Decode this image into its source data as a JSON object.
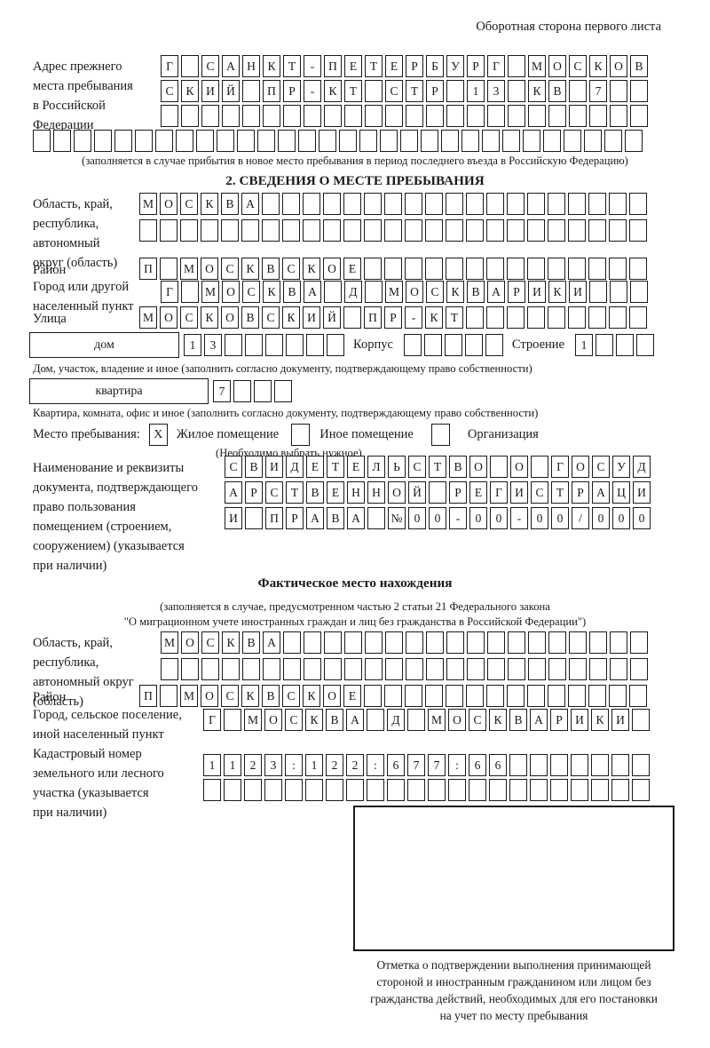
{
  "page_note": "Оборотная сторона первого листа",
  "prev_address": {
    "label_lines": [
      "Адрес прежнего",
      "места пребывания",
      "в Российской",
      "Федерации"
    ],
    "row1": "Г САНКТ-ПЕТЕРБУРГ МОСКОВ",
    "row2": "СКИЙ ПР-КТ СТР 13 КВ 7  ",
    "row3": 24,
    "row4": 30,
    "note": "(заполняется в случае прибытия в новое место пребывания в период последнего въезда в Российскую Федерацию)"
  },
  "section2": {
    "title": "2. СВЕДЕНИЯ О МЕСТЕ ПРЕБЫВАНИЯ",
    "region": {
      "label_lines": [
        "Область, край,",
        "республика,",
        "автономный",
        "округ (область)"
      ],
      "row1": "МОСКВА                   ",
      "row2": 25
    },
    "district": {
      "label": "Район",
      "row": "П МОСКВСКОЕ              "
    },
    "city": {
      "label_lines": [
        "Город или другой",
        "населенный пункт"
      ],
      "row": "Г МОСКВА Д МОСКВАРИКИ   "
    },
    "street": {
      "label": "Улица",
      "row": "МОСКОВСКИЙ ПР-КТ         "
    },
    "house": {
      "box_label": "дом",
      "cells": "13      ",
      "korpus_label": "Корпус",
      "korpus_cells": 5,
      "stroenie_label": "Строение",
      "stroenie_cells": "1   "
    },
    "house_note": "Дом, участок, владение и иное (заполнить согласно документу, подтверждающему право собственности)",
    "apartment": {
      "box_label": "квартира",
      "cells": "7   "
    },
    "apartment_note": "Квартира, комната, офис и иное (заполнить согласно документу, подтверждающему право собственности)",
    "stay_type": {
      "label": "Место пребывания:",
      "options": [
        {
          "label": "Жилое помещение",
          "checked": "X"
        },
        {
          "label": "Иное помещение",
          "checked": ""
        },
        {
          "label": "Организация",
          "checked": ""
        }
      ],
      "note": "(Необходимо выбрать нужное)"
    },
    "document": {
      "label_lines": [
        "Наименование и реквизиты",
        "документа, подтверждающего",
        "право пользования",
        "помещением (строением,",
        "сооружением) (указывается",
        "при наличии)"
      ],
      "row1": "СВИДЕТЕЛЬСТВО О ГОСУД",
      "row2": "АРСТВЕННОЙ РЕГИСТРАЦИ",
      "row3": "И ПРАВА №00-00-00/000"
    }
  },
  "actual_location": {
    "title": "Фактическое место нахождения",
    "note_line1": "(заполняется в случае, предусмотренном частью 2 статьи 21 Федерального закона",
    "note_line2": "\"О миграционном учете иностранных граждан и лиц без гражданства в Российской Федерации\")",
    "region": {
      "label_lines": [
        "Область, край,",
        "республика,",
        "автономный округ",
        "(область)"
      ],
      "row1": "МОСКВА                  ",
      "row2": 24
    },
    "district": {
      "label": "Район",
      "row": "П МОСКВСКОЕ              "
    },
    "city": {
      "label_lines": [
        "Город, сельское поселение,",
        "иной населенный пункт"
      ],
      "row": "Г МОСКВА Д МОСКВАРИКИ "
    },
    "cadastre": {
      "label_lines": [
        "Кадастровый номер",
        "земельного или лесного",
        "участка (указывается",
        "при наличии)"
      ],
      "row1": "1123:122:677:66       ",
      "row2": 22
    }
  },
  "confirmation": {
    "caption_lines": [
      "Отметка о подтверждении выполнения принимающей",
      "стороной и иностранным гражданином или лицом без",
      "гражданства действий, необходимых для его постановки",
      "на учет по месту пребывания"
    ]
  }
}
